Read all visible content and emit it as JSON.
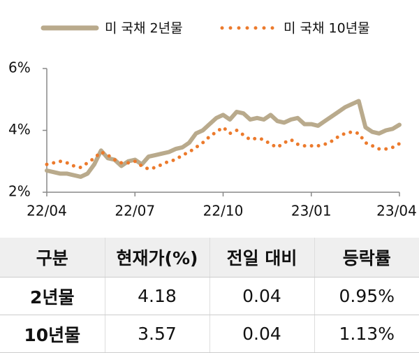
{
  "chart_data": {
    "type": "line",
    "categories": [
      "22/04",
      null,
      null,
      null,
      null,
      null,
      null,
      null,
      null,
      null,
      null,
      null,
      null,
      "22/07",
      null,
      null,
      null,
      null,
      null,
      null,
      null,
      null,
      null,
      null,
      null,
      null,
      "22/10",
      null,
      null,
      null,
      null,
      null,
      null,
      null,
      null,
      null,
      null,
      null,
      null,
      "23/01",
      null,
      null,
      null,
      null,
      null,
      null,
      null,
      null,
      null,
      null,
      null,
      null,
      "23/04"
    ],
    "series": [
      {
        "name": "미 국채 2년물",
        "color": "#b9aa8c",
        "style": "solid",
        "values": [
          2.7,
          2.65,
          2.6,
          2.6,
          2.55,
          2.5,
          2.6,
          2.9,
          3.35,
          3.1,
          3.05,
          2.85,
          3.0,
          3.05,
          2.9,
          3.15,
          3.2,
          3.25,
          3.3,
          3.4,
          3.45,
          3.6,
          3.9,
          4.0,
          4.2,
          4.4,
          4.5,
          4.35,
          4.6,
          4.55,
          4.35,
          4.4,
          4.35,
          4.5,
          4.3,
          4.25,
          4.35,
          4.4,
          4.2,
          4.2,
          4.15,
          4.3,
          4.45,
          4.6,
          4.75,
          4.85,
          4.95,
          4.1,
          3.95,
          3.9,
          4.0,
          4.05,
          4.18
        ]
      },
      {
        "name": "미 국채 10년물",
        "color": "#ec7a2c",
        "style": "dotted",
        "values": [
          2.9,
          2.95,
          3.0,
          2.95,
          2.85,
          2.8,
          2.95,
          3.1,
          3.3,
          3.2,
          3.05,
          2.95,
          2.95,
          3.0,
          2.85,
          2.75,
          2.8,
          2.9,
          3.0,
          3.05,
          3.2,
          3.3,
          3.45,
          3.6,
          3.8,
          3.95,
          4.1,
          3.9,
          4.0,
          3.85,
          3.7,
          3.75,
          3.7,
          3.55,
          3.45,
          3.6,
          3.7,
          3.55,
          3.5,
          3.5,
          3.5,
          3.55,
          3.65,
          3.8,
          3.9,
          3.95,
          3.9,
          3.6,
          3.5,
          3.4,
          3.4,
          3.45,
          3.57
        ]
      }
    ],
    "ylim": [
      2,
      6
    ],
    "yticks": [
      {
        "value": 2,
        "label": "2%"
      },
      {
        "value": 4,
        "label": "4%"
      },
      {
        "value": 6,
        "label": "6%"
      }
    ],
    "grid": false
  },
  "table": {
    "header": [
      "구분",
      "현재가(%)",
      "전일 대비",
      "등락률"
    ],
    "rows": [
      [
        "2년물",
        "4.18",
        "0.04",
        "0.95%"
      ],
      [
        "10년물",
        "3.57",
        "0.04",
        "1.13%"
      ]
    ]
  }
}
